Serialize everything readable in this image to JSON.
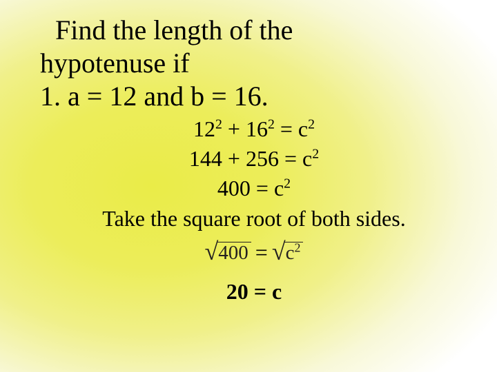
{
  "colors": {
    "gradient_inner": "#eaec48",
    "gradient_mid1": "#eced5a",
    "gradient_mid2": "#f0f089",
    "gradient_outer": "#ffffff",
    "text": "#000000",
    "math_text": "#231f20"
  },
  "typography": {
    "title_fontsize": 40,
    "body_fontsize": 32,
    "answer_fontsize": 32,
    "font_family": "Times New Roman"
  },
  "title": {
    "line1": "Find the length of the",
    "line2": "hypotenuse if",
    "line3": "1.  a = 12 and b = 16."
  },
  "steps": {
    "s1_a": "12",
    "s1_b": "16",
    "s1_rhs": "c",
    "s2_lhs1": "144",
    "s2_lhs2": "256",
    "s2_rhs": "c",
    "s3_lhs": "400",
    "s3_rhs": "c",
    "instruction": "Take the square root of both sides.",
    "sqrt_left": "400",
    "sqrt_eq": "=",
    "sqrt_right_base": "c",
    "sqrt_right_exp": "2"
  },
  "answer": "20 = c"
}
